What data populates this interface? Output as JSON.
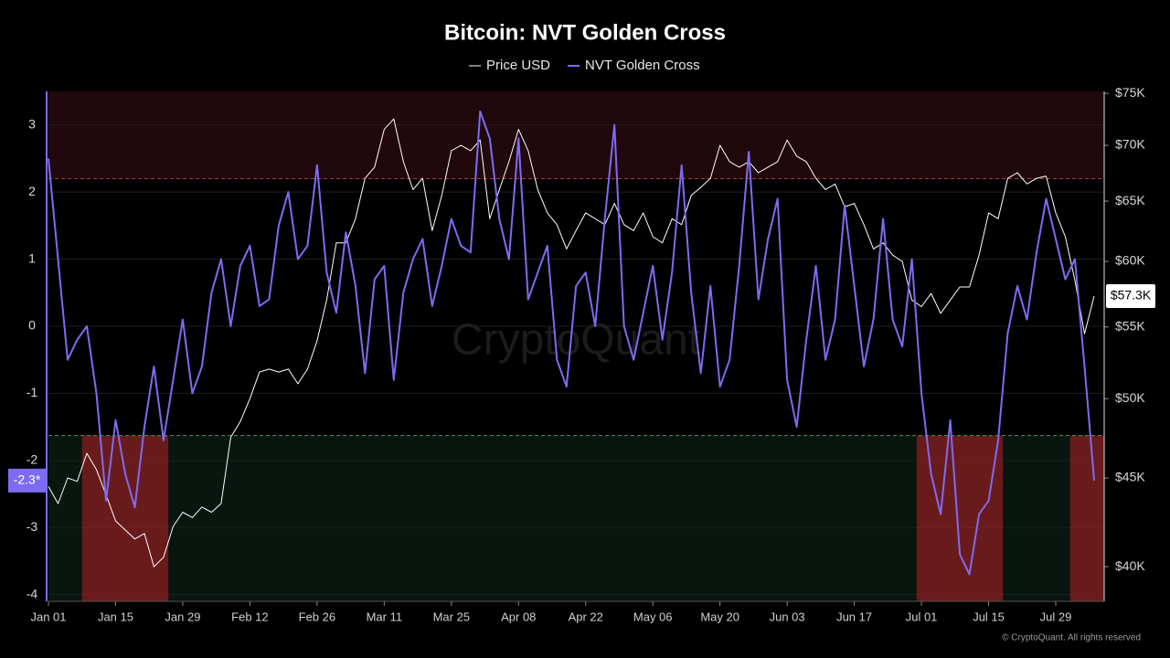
{
  "chart_data": {
    "type": "line",
    "title": "Bitcoin: NVT Golden Cross",
    "watermark": "CryptoQuant",
    "copyright": "© CryptoQuant. All rights reserved",
    "categories": [
      "Jan 01",
      null,
      null,
      null,
      null,
      null,
      null,
      "Jan 15",
      null,
      null,
      null,
      null,
      null,
      null,
      "Jan 29",
      null,
      null,
      null,
      null,
      null,
      null,
      "Feb 12",
      null,
      null,
      null,
      null,
      null,
      null,
      "Feb 26",
      null,
      null,
      null,
      null,
      null,
      null,
      "Mar 11",
      null,
      null,
      null,
      null,
      null,
      null,
      "Mar 25",
      null,
      null,
      null,
      null,
      null,
      null,
      "Apr 08",
      null,
      null,
      null,
      null,
      null,
      null,
      "Apr 22",
      null,
      null,
      null,
      null,
      null,
      null,
      "May 06",
      null,
      null,
      null,
      null,
      null,
      null,
      "May 20",
      null,
      null,
      null,
      null,
      null,
      null,
      "Jun 03",
      null,
      null,
      null,
      null,
      null,
      null,
      "Jun 17",
      null,
      null,
      null,
      null,
      null,
      null,
      "Jul 01",
      null,
      null,
      null,
      null,
      null,
      null,
      "Jul 15",
      null,
      null,
      null,
      null,
      null,
      null,
      "Jul 29",
      null,
      null,
      null,
      null
    ],
    "series": [
      {
        "name": "Price USD",
        "color": "#ffffff",
        "axis": "y2",
        "last_label": "$57.3K",
        "values": [
          44500,
          43500,
          45000,
          44800,
          46500,
          45500,
          44000,
          42500,
          42000,
          41500,
          41800,
          40000,
          40500,
          42200,
          43000,
          42700,
          43300,
          43000,
          43500,
          47500,
          48500,
          50000,
          51800,
          52000,
          51800,
          52000,
          51000,
          52000,
          54000,
          57000,
          61500,
          61500,
          63500,
          67000,
          68000,
          71500,
          72500,
          68500,
          66000,
          67000,
          62500,
          65500,
          69500,
          70000,
          69500,
          70500,
          63500,
          66000,
          68500,
          71500,
          69500,
          66000,
          64000,
          63000,
          61000,
          62500,
          64000,
          63500,
          63000,
          64800,
          63000,
          62500,
          64000,
          62000,
          61500,
          63500,
          63000,
          65500,
          66200,
          67000,
          70000,
          68500,
          68000,
          68500,
          67500,
          68000,
          68500,
          70500,
          69000,
          68500,
          67000,
          66000,
          66500,
          64500,
          64800,
          63000,
          61000,
          61500,
          60500,
          60000,
          57000,
          56500,
          57500,
          56000,
          57000,
          58000,
          58000,
          60500,
          64000,
          63500,
          67000,
          67500,
          66500,
          67000,
          67200,
          64000,
          62000,
          58500,
          54500,
          57300
        ]
      },
      {
        "name": "NVT Golden Cross",
        "color": "#7d6cf2",
        "axis": "y",
        "last_label": "-2.3*",
        "values": [
          2.5,
          1.0,
          -0.5,
          -0.2,
          0.0,
          -1.0,
          -2.6,
          -1.4,
          -2.2,
          -2.7,
          -1.5,
          -0.6,
          -1.7,
          -0.8,
          0.1,
          -1.0,
          -0.6,
          0.5,
          1.0,
          0.0,
          0.9,
          1.2,
          0.3,
          0.4,
          1.5,
          2.0,
          1.0,
          1.2,
          2.4,
          0.8,
          0.2,
          1.4,
          0.6,
          -0.7,
          0.7,
          0.9,
          -0.8,
          0.5,
          1.0,
          1.3,
          0.3,
          0.9,
          1.6,
          1.2,
          1.1,
          3.2,
          2.8,
          1.6,
          1.0,
          2.8,
          0.4,
          0.8,
          1.2,
          -0.5,
          -0.9,
          0.6,
          0.8,
          0.0,
          1.6,
          3.0,
          0.0,
          -0.5,
          0.2,
          0.9,
          -0.2,
          0.8,
          2.4,
          0.5,
          -0.7,
          0.6,
          -0.9,
          -0.5,
          0.9,
          2.6,
          0.4,
          1.3,
          1.9,
          -0.8,
          -1.5,
          -0.2,
          0.9,
          -0.5,
          0.1,
          1.8,
          0.6,
          -0.6,
          0.1,
          1.6,
          0.1,
          -0.3,
          1.0,
          -1.0,
          -2.2,
          -2.8,
          -1.4,
          -3.4,
          -3.7,
          -2.8,
          -2.6,
          -1.7,
          -0.1,
          0.6,
          0.1,
          1.1,
          1.9,
          1.3,
          0.7,
          1.0,
          -0.6,
          -2.3
        ]
      }
    ],
    "ylim": [
      -4.1,
      3.5
    ],
    "yticks": [
      -4,
      -3,
      -2,
      -1,
      0,
      1,
      2,
      3
    ],
    "y2lim": [
      38200,
      75200
    ],
    "y2log": true,
    "y2ticks": [
      {
        "value": 40000,
        "label": "$40K"
      },
      {
        "value": 45000,
        "label": "$45K"
      },
      {
        "value": 50000,
        "label": "$50K"
      },
      {
        "value": 55000,
        "label": "$55K"
      },
      {
        "value": 60000,
        "label": "$60K"
      },
      {
        "value": 65000,
        "label": "$65K"
      },
      {
        "value": 70000,
        "label": "$70K"
      },
      {
        "value": 75000,
        "label": "$75K"
      }
    ],
    "upper_threshold": 2.2,
    "lower_threshold": -1.63,
    "highlights": [
      {
        "from": 4,
        "to": 12
      },
      {
        "from": 91,
        "to": 99
      },
      {
        "from": 107,
        "to": 109
      }
    ],
    "grid": true,
    "legend": "top"
  }
}
